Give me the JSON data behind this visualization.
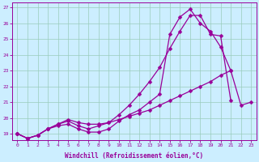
{
  "xlabel": "Windchill (Refroidissement éolien,°C)",
  "ylabel": "",
  "bg_color": "#cceeff",
  "line_color": "#990099",
  "grid_color": "#99ccbb",
  "xlim": [
    -0.5,
    23.5
  ],
  "ylim": [
    18.6,
    27.3
  ],
  "xticks": [
    0,
    1,
    2,
    3,
    4,
    5,
    6,
    7,
    8,
    9,
    10,
    11,
    12,
    13,
    14,
    15,
    16,
    17,
    18,
    19,
    20,
    21,
    22,
    23
  ],
  "yticks": [
    19,
    20,
    21,
    22,
    23,
    24,
    25,
    26,
    27
  ],
  "line1_x": [
    0,
    1,
    2,
    3,
    4,
    5,
    6,
    7,
    8,
    9,
    10,
    11,
    12,
    13,
    14,
    15,
    16,
    17,
    18,
    19,
    20,
    21
  ],
  "line1_y": [
    19.0,
    18.7,
    18.9,
    19.3,
    19.5,
    19.6,
    19.3,
    19.1,
    19.1,
    19.3,
    19.8,
    20.2,
    20.5,
    21.0,
    21.5,
    25.3,
    26.4,
    26.9,
    26.0,
    25.5,
    24.5,
    23.0
  ],
  "line2_x": [
    0,
    1,
    2,
    3,
    4,
    5,
    6,
    7,
    8,
    9,
    10,
    11,
    12,
    13,
    14,
    15,
    16,
    17,
    18,
    19,
    20,
    21
  ],
  "line2_y": [
    19.0,
    18.7,
    18.9,
    19.3,
    19.6,
    19.8,
    19.5,
    19.3,
    19.5,
    19.7,
    20.2,
    20.8,
    21.5,
    22.3,
    23.2,
    24.4,
    25.5,
    26.5,
    26.5,
    25.3,
    25.2,
    21.1
  ],
  "line3_x": [
    0,
    1,
    2,
    3,
    4,
    5,
    6,
    7,
    8,
    9,
    10,
    11,
    12,
    13,
    14,
    15,
    16,
    17,
    18,
    19,
    20,
    21,
    22,
    23
  ],
  "line3_y": [
    19.0,
    18.7,
    18.9,
    19.3,
    19.6,
    19.9,
    19.7,
    19.6,
    19.6,
    19.7,
    19.9,
    20.1,
    20.3,
    20.5,
    20.8,
    21.1,
    21.4,
    21.7,
    22.0,
    22.3,
    22.7,
    23.0,
    20.8,
    21.0
  ],
  "markersize": 2.5,
  "linewidth": 0.9
}
